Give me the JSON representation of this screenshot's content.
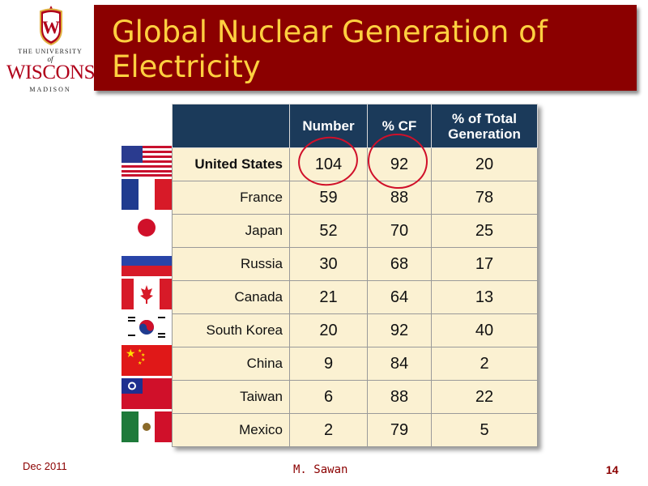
{
  "logo": {
    "line1": "THE UNIVERSITY",
    "line2": "of",
    "line3": "WISCONSIN",
    "line4": "MADISON",
    "crest_letter": "W",
    "crest_color": "#b0001a"
  },
  "title": "Global Nuclear Generation of Electricity",
  "table": {
    "headers": [
      "",
      "Number",
      "% CF",
      "% of Total Generation"
    ],
    "rows": [
      {
        "country": "United States",
        "number": "104",
        "cf": "92",
        "total": "20",
        "flag": "us-flag"
      },
      {
        "country": "France",
        "number": "59",
        "cf": "88",
        "total": "78",
        "flag": "france-flag"
      },
      {
        "country": "Japan",
        "number": "52",
        "cf": "70",
        "total": "25",
        "flag": "japan-flag"
      },
      {
        "country": "Russia",
        "number": "30",
        "cf": "68",
        "total": "17",
        "flag": "russia-flag"
      },
      {
        "country": "Canada",
        "number": "21",
        "cf": "64",
        "total": "13",
        "flag": "canada-flag"
      },
      {
        "country": "South Korea",
        "number": "20",
        "cf": "92",
        "total": "40",
        "flag": "south-korea-flag"
      },
      {
        "country": "China",
        "number": "9",
        "cf": "84",
        "total": "2",
        "flag": "china-flag"
      },
      {
        "country": "Taiwan",
        "number": "6",
        "cf": "88",
        "total": "22",
        "flag": "taiwan-flag"
      },
      {
        "country": "Mexico",
        "number": "2",
        "cf": "79",
        "total": "5",
        "flag": "mexico-flag"
      }
    ]
  },
  "footer": {
    "date": "Dec 2011",
    "author": "M. Sawan",
    "page": "14"
  },
  "colors": {
    "title_bg": "#8b0000",
    "title_text": "#ffd040",
    "header_bg": "#1b3a5a",
    "cell_bg": "#fbf1d2",
    "highlight_circle": "#d0102a"
  }
}
